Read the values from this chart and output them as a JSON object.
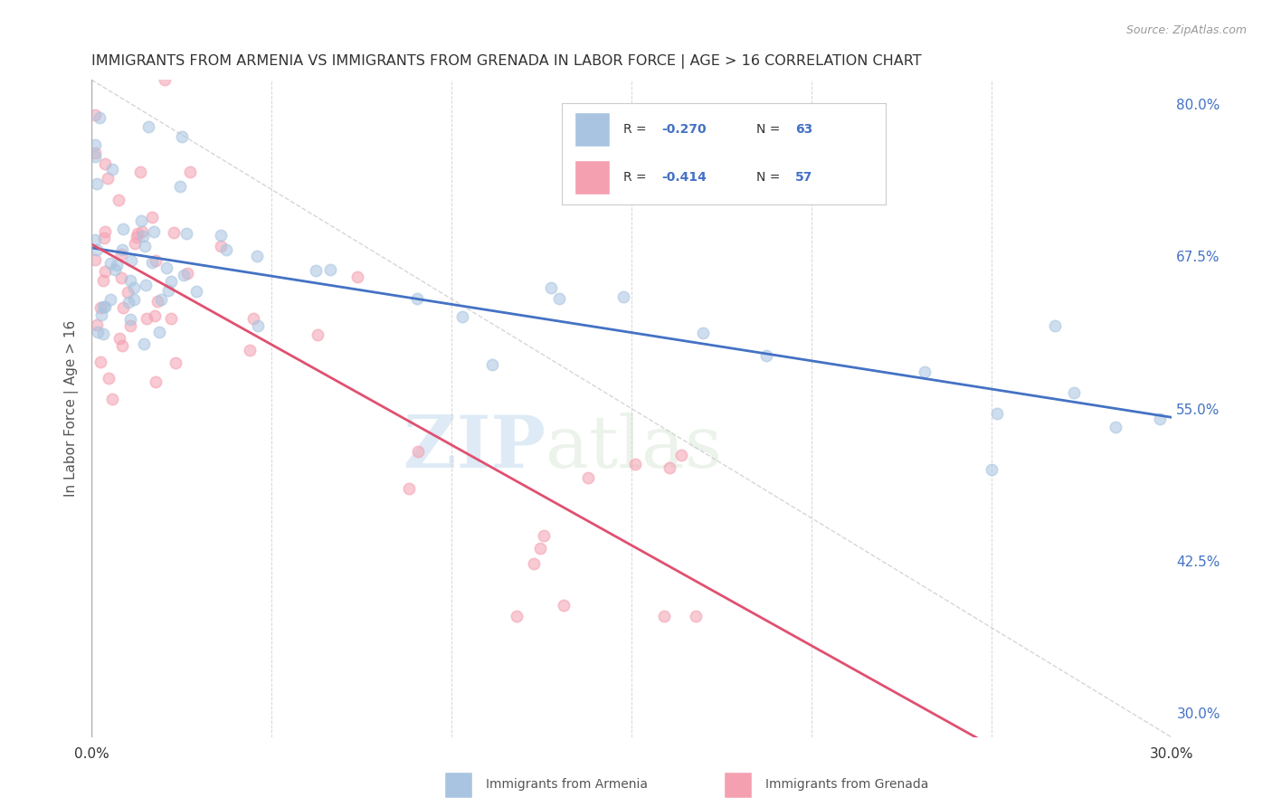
{
  "title": "IMMIGRANTS FROM ARMENIA VS IMMIGRANTS FROM GRENADA IN LABOR FORCE | AGE > 16 CORRELATION CHART",
  "source": "Source: ZipAtlas.com",
  "ylabel": "In Labor Force | Age > 16",
  "xlim": [
    0.0,
    0.3
  ],
  "ylim": [
    0.28,
    0.82
  ],
  "yticks_right": [
    0.3,
    0.425,
    0.55,
    0.675,
    0.8
  ],
  "ytick_right_labels": [
    "30.0%",
    "42.5%",
    "55.0%",
    "67.5%",
    "80.0%"
  ],
  "armenia_color": "#a8c4e0",
  "grenada_color": "#f4a0b0",
  "armenia_line_color": "#4472c4",
  "grenada_line_color": "#e05070",
  "trendline_dashed_color": "#cccccc",
  "legend_R_armenia": "-0.270",
  "legend_N_armenia": "63",
  "legend_R_grenada": "-0.414",
  "legend_N_grenada": "57",
  "legend_label_armenia": "Immigrants from Armenia",
  "legend_label_grenada": "Immigrants from Grenada",
  "watermark_zip": "ZIP",
  "watermark_atlas": "atlas",
  "background_color": "#ffffff",
  "grid_color": "#cccccc",
  "title_color": "#333333",
  "axis_label_color": "#555555",
  "right_axis_color": "#4472c4",
  "dot_size": 80,
  "dot_alpha": 0.55,
  "dot_linewidth": 1.2,
  "armenia_slope": -0.5,
  "armenia_intercept": 0.685,
  "grenada_slope": -1.8,
  "grenada_intercept": 0.69,
  "arm_noise": 0.04,
  "gren_noise": 0.055,
  "arm_seed": 10,
  "gren_seed": 20,
  "n_arm": 63,
  "n_gren": 57
}
